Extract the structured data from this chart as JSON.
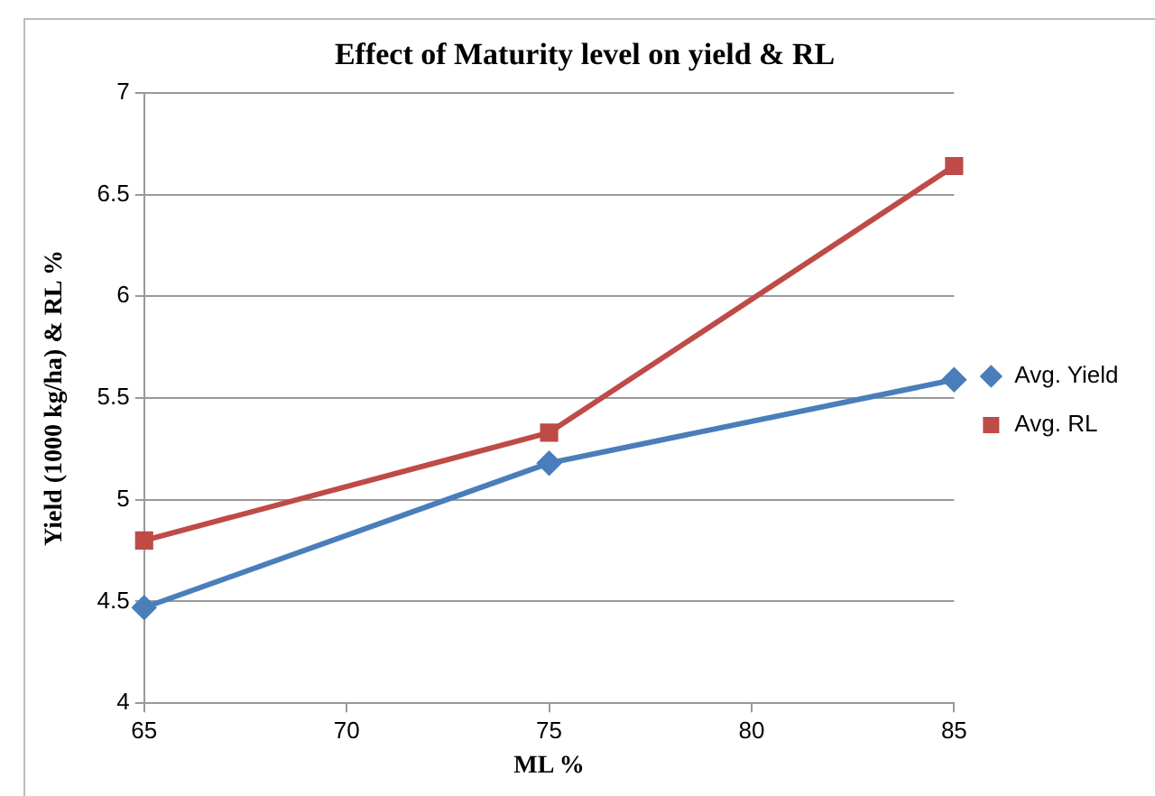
{
  "chart_data": {
    "type": "line",
    "title": "Effect of Maturity level on yield & RL",
    "xlabel": "ML %",
    "ylabel": "Yield (1000 kg/ha) & RL %",
    "x": [
      65,
      75,
      85
    ],
    "series": [
      {
        "name": "Avg. Yield",
        "color": "#4a7ebb",
        "values": [
          4.47,
          5.18,
          5.59
        ],
        "marker": "diamond"
      },
      {
        "name": "Avg. RL",
        "color": "#be4b48",
        "values": [
          4.8,
          5.33,
          6.64
        ],
        "marker": "square"
      }
    ],
    "xlim": [
      65,
      85
    ],
    "xticks": [
      65,
      70,
      75,
      80,
      85
    ],
    "ylim": [
      4,
      7
    ],
    "yticks": [
      4,
      4.5,
      5,
      5.5,
      6,
      6.5,
      7
    ],
    "grid": "y",
    "legend": "right",
    "line_style": "solid"
  }
}
